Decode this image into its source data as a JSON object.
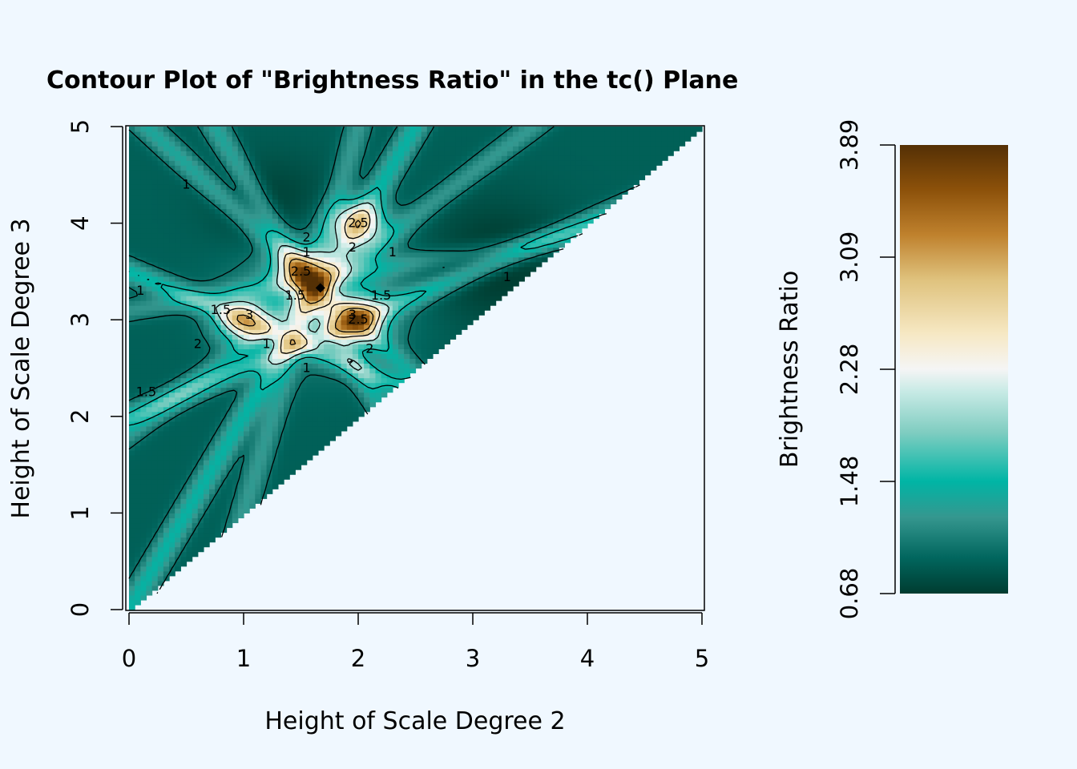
{
  "chart_data": {
    "type": "heatmap",
    "subtype": "filled-contour",
    "title": "Contour Plot of \"Brightness Ratio\" in the tc() Plane",
    "xlabel": "Height of Scale Degree 2",
    "ylabel": "Height of Scale Degree 3",
    "xlim": [
      0,
      5
    ],
    "ylim": [
      0,
      5
    ],
    "x_ticks": [
      "0",
      "1",
      "2",
      "3",
      "4",
      "5"
    ],
    "y_ticks": [
      "0",
      "1",
      "2",
      "3",
      "4",
      "5"
    ],
    "domain": "upper-triangle (y >= x)",
    "colorbar": {
      "label": "Brightness Ratio",
      "ticks": [
        "0.68",
        "1.48",
        "2.28",
        "3.09",
        "3.89"
      ],
      "range": [
        0.68,
        3.89
      ],
      "colors": [
        "#003c30",
        "#01665e",
        "#35978f",
        "#00b5a5",
        "#80cdc1",
        "#c7eae5",
        "#f5f5f5",
        "#f6e8c3",
        "#dfc27d",
        "#bf812d",
        "#8c510a",
        "#543005"
      ]
    },
    "contour_levels": [
      1,
      1.5,
      2,
      2.5,
      3
    ],
    "contour_labels": [
      "1",
      "1",
      "1",
      "1",
      "1",
      "1",
      "1",
      "1.5",
      "1.5",
      "1.5",
      "1.5",
      "2",
      "2",
      "2",
      "2",
      "3",
      "3",
      "2.5",
      "2.5",
      "2.5"
    ],
    "marker_point": {
      "x": 1.67,
      "y": 3.33
    },
    "peaks": [
      {
        "x": 1.0,
        "y": 3.0,
        "value": 2.9
      },
      {
        "x": 2.0,
        "y": 3.0,
        "value": 3.1
      },
      {
        "x": 2.0,
        "y": 4.0,
        "value": 2.9
      },
      {
        "x": 1.5,
        "y": 3.5,
        "value": 2.8
      }
    ]
  }
}
